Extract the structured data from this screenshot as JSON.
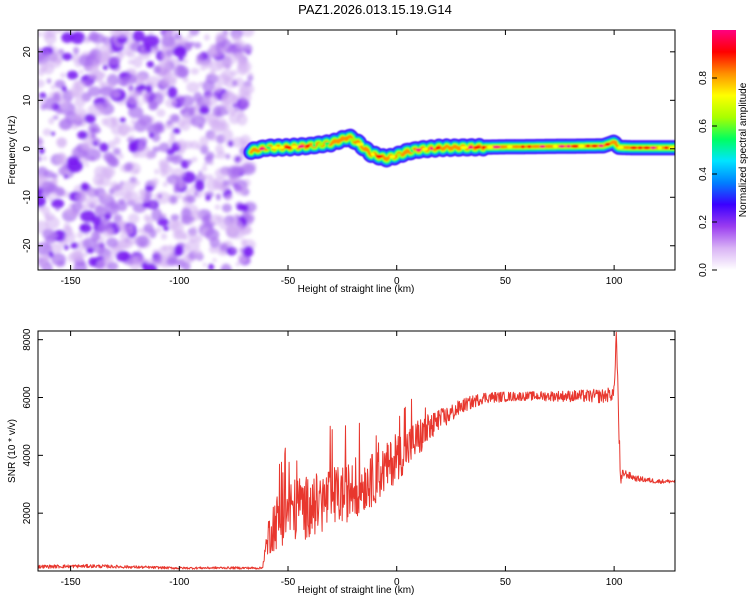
{
  "figure": {
    "title": "PAZ1.2026.013.15.19.G14"
  },
  "chart_data": [
    {
      "type": "heatmap",
      "title": "PAZ1.2026.013.15.19.G14",
      "xlabel": "Height of straight line (km)",
      "ylabel": "Frequency (Hz)",
      "xlim": [
        -165,
        128
      ],
      "ylim": [
        -25,
        24.5
      ],
      "xticks": [
        -150,
        -100,
        -50,
        0,
        50,
        100
      ],
      "yticks": [
        -20,
        -10,
        0,
        10,
        20
      ],
      "noise_region_x": [
        -165,
        -67
      ],
      "signal_ridge": {
        "x": [
          -67,
          -60,
          -50,
          -40,
          -30,
          -22,
          -18,
          -12,
          -5,
          0,
          5,
          10,
          20,
          50,
          95,
          100,
          102,
          110,
          128
        ],
        "y": [
          -0.5,
          0.2,
          0.3,
          0.6,
          1.2,
          2.4,
          1.3,
          -1.0,
          -2.0,
          -1.4,
          -0.6,
          -0.2,
          0.2,
          0.4,
          0.6,
          1.4,
          0.3,
          0.2,
          0.2
        ]
      },
      "colorbar": {
        "label": "Normalized spectral amplitude",
        "range": [
          0,
          1
        ],
        "ticks": [
          0.0,
          0.2,
          0.4,
          0.6,
          0.8
        ],
        "tick_labels": [
          "0.0",
          "0.2",
          "0.4",
          "0.6",
          "0.8"
        ],
        "colors": [
          "#ffffff",
          "#d9b3f5",
          "#9a3cf0",
          "#3a00ff",
          "#0080ff",
          "#00e5ff",
          "#00ff60",
          "#a8ff00",
          "#ffff00",
          "#ff9000",
          "#ff0000",
          "#ff0080"
        ]
      }
    },
    {
      "type": "line",
      "xlabel": "Height of straight line (km)",
      "ylabel": "SNR (10 * v/v)",
      "xlim": [
        -165,
        128
      ],
      "ylim": [
        0,
        8300
      ],
      "xticks": [
        -150,
        -100,
        -50,
        0,
        50,
        100
      ],
      "yticks": [
        2000,
        4000,
        6000,
        8000
      ],
      "line_color": "#e8372e",
      "series": [
        {
          "name": "SNR",
          "x": [
            -165,
            -140,
            -100,
            -80,
            -62,
            -58,
            -50,
            -40,
            -30,
            -20,
            -10,
            0,
            10,
            20,
            30,
            40,
            60,
            80,
            95,
            100,
            101,
            102,
            103,
            104,
            110,
            120,
            128
          ],
          "y": [
            150,
            170,
            100,
            110,
            100,
            1500,
            2100,
            2200,
            2500,
            2800,
            3200,
            3900,
            4600,
            5200,
            5700,
            6000,
            6050,
            6050,
            6050,
            6150,
            8300,
            5500,
            2900,
            3400,
            3200,
            3100,
            3100
          ],
          "noise_amp": [
            60,
            60,
            40,
            40,
            40,
            900,
            1100,
            1100,
            1100,
            1000,
            900,
            800,
            700,
            400,
            250,
            200,
            150,
            200,
            250,
            250,
            200,
            500,
            300,
            150,
            100,
            80,
            60
          ]
        }
      ]
    }
  ]
}
